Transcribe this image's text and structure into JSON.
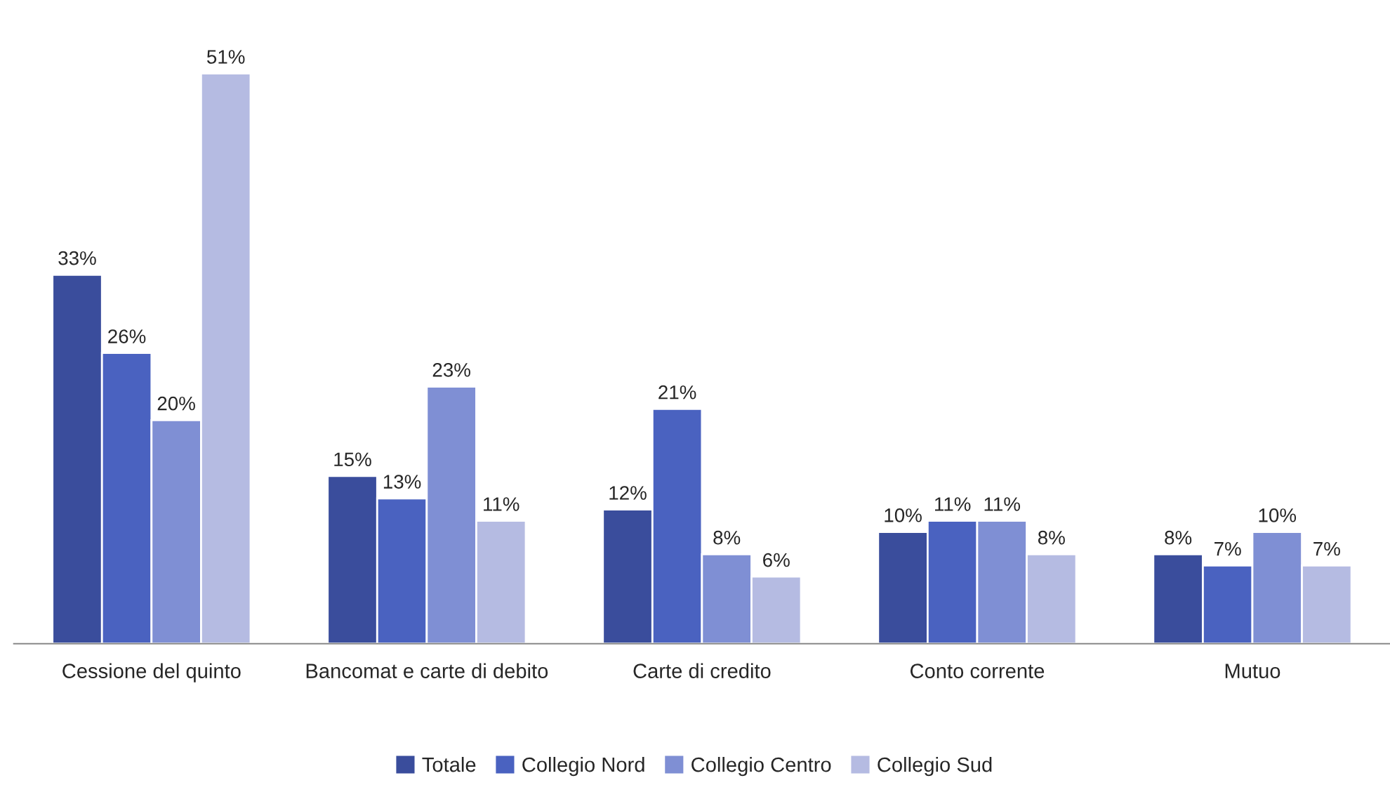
{
  "chart_data": {
    "type": "bar",
    "categories": [
      "Cessione del quinto",
      "Bancomat e carte di debito",
      "Carte di credito",
      "Conto corrente",
      "Mutuo"
    ],
    "series": [
      {
        "name": "Totale",
        "color": "#3a4d9c",
        "values": [
          33,
          15,
          12,
          10,
          8
        ],
        "value_labels": [
          "33%",
          "15%",
          "12%",
          "10%",
          "8%"
        ]
      },
      {
        "name": "Collegio Nord",
        "color": "#4a62c0",
        "values": [
          26,
          13,
          21,
          11,
          7
        ],
        "value_labels": [
          "26%",
          "13%",
          "21%",
          "11%",
          "7%"
        ]
      },
      {
        "name": "Collegio Centro",
        "color": "#7f8fd4",
        "values": [
          20,
          23,
          8,
          11,
          10
        ],
        "value_labels": [
          "20%",
          "23%",
          "8%",
          "11%",
          "10%"
        ]
      },
      {
        "name": "Collegio Sud",
        "color": "#b5bbe2",
        "values": [
          51,
          11,
          6,
          8,
          7
        ],
        "value_labels": [
          "51%",
          "11%",
          "6%",
          "8%",
          "7%"
        ]
      }
    ],
    "legend": "bottom",
    "grid": false,
    "tick_labels": "x"
  }
}
